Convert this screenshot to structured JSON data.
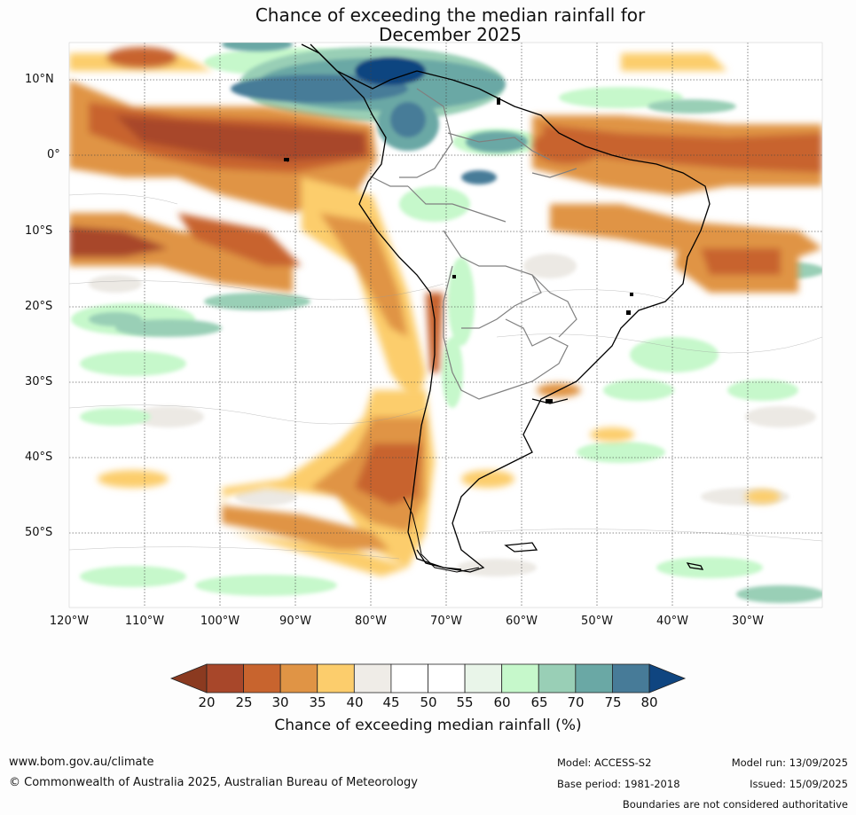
{
  "title_line1": "Chance of exceeding the median rainfall for",
  "title_line2": "December 2025",
  "lat_labels": [
    "10°N",
    "0°",
    "10°S",
    "20°S",
    "30°S",
    "40°S",
    "50°S"
  ],
  "lon_labels": [
    "120°W",
    "110°W",
    "100°W",
    "90°W",
    "80°W",
    "70°W",
    "60°W",
    "50°W",
    "40°W",
    "30°W"
  ],
  "colorbar": {
    "ticks": [
      "20",
      "25",
      "30",
      "35",
      "40",
      "45",
      "50",
      "55",
      "60",
      "65",
      "70",
      "75",
      "80"
    ],
    "colors": [
      "#8b3a20",
      "#a8472a",
      "#c8642e",
      "#e09445",
      "#fccd6c",
      "#efece7",
      "#ffffff",
      "#ffffff",
      "#e9f5e9",
      "#c6f8cb",
      "#99cfb6",
      "#6aa8a5",
      "#477b98",
      "#0f4580"
    ],
    "title": "Chance of exceeding median rainfall (%)"
  },
  "footer": {
    "url": "www.bom.gov.au/climate",
    "copyright": "© Commonwealth of Australia 2025, Australian Bureau of Meteorology",
    "model": "Model: ACCESS-S2",
    "base_period": "Base period: 1981-2018",
    "model_run": "Model run: 13/09/2025",
    "issued": "Issued: 15/09/2025",
    "disclaimer": "Boundaries are not considered authoritative"
  }
}
